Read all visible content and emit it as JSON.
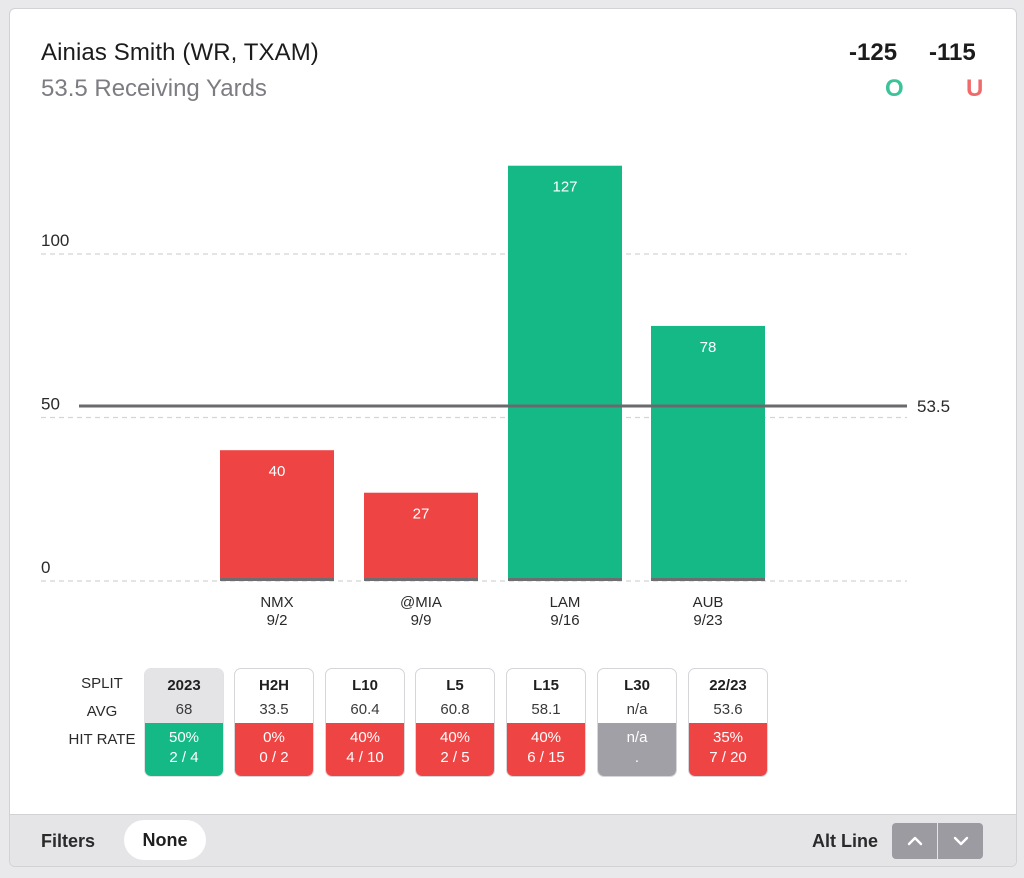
{
  "header": {
    "title": "Ainias Smith (WR, TXAM)",
    "subtitle": "53.5 Receiving Yards",
    "over_odds": "-125",
    "under_odds": "-115",
    "over_label": "O",
    "under_label": "U"
  },
  "colors": {
    "over": "#14b985",
    "under": "#ef4444",
    "neutral": "#a0a0a6",
    "over_text": "#3cc39a",
    "under_text": "#f06a6a"
  },
  "chart_data": {
    "type": "bar",
    "title": "53.5 Receiving Yards",
    "categories": [
      "NMX",
      "@MIA",
      "LAM",
      "AUB"
    ],
    "dates": [
      "9/2",
      "9/9",
      "9/16",
      "9/23"
    ],
    "values": [
      40,
      27,
      127,
      78
    ],
    "line_value": 53.5,
    "line_label": "53.5",
    "yticks": [
      0,
      50,
      100
    ],
    "ytick_labels": [
      "0",
      "50",
      "100"
    ],
    "ylim": [
      0,
      127
    ],
    "grid": true,
    "xlabel": "",
    "ylabel": ""
  },
  "splits": {
    "row_labels": [
      "SPLIT",
      "AVG",
      "HIT RATE"
    ],
    "items": [
      {
        "label": "2023",
        "avg": "68",
        "pct": "50%",
        "record": "2 / 4",
        "status": "over"
      },
      {
        "label": "H2H",
        "avg": "33.5",
        "pct": "0%",
        "record": "0 / 2",
        "status": "under"
      },
      {
        "label": "L10",
        "avg": "60.4",
        "pct": "40%",
        "record": "4 / 10",
        "status": "under"
      },
      {
        "label": "L5",
        "avg": "60.8",
        "pct": "40%",
        "record": "2 / 5",
        "status": "under"
      },
      {
        "label": "L15",
        "avg": "58.1",
        "pct": "40%",
        "record": "6 / 15",
        "status": "under"
      },
      {
        "label": "L30",
        "avg": "n/a",
        "pct": "n/a",
        "record": ".",
        "status": "neutral"
      },
      {
        "label": "22/23",
        "avg": "53.6",
        "pct": "35%",
        "record": "7 / 20",
        "status": "under"
      }
    ]
  },
  "footer": {
    "filters_label": "Filters",
    "filters_value": "None",
    "alt_line_label": "Alt Line",
    "up_icon": "chevron-up-icon",
    "down_icon": "chevron-down-icon"
  }
}
